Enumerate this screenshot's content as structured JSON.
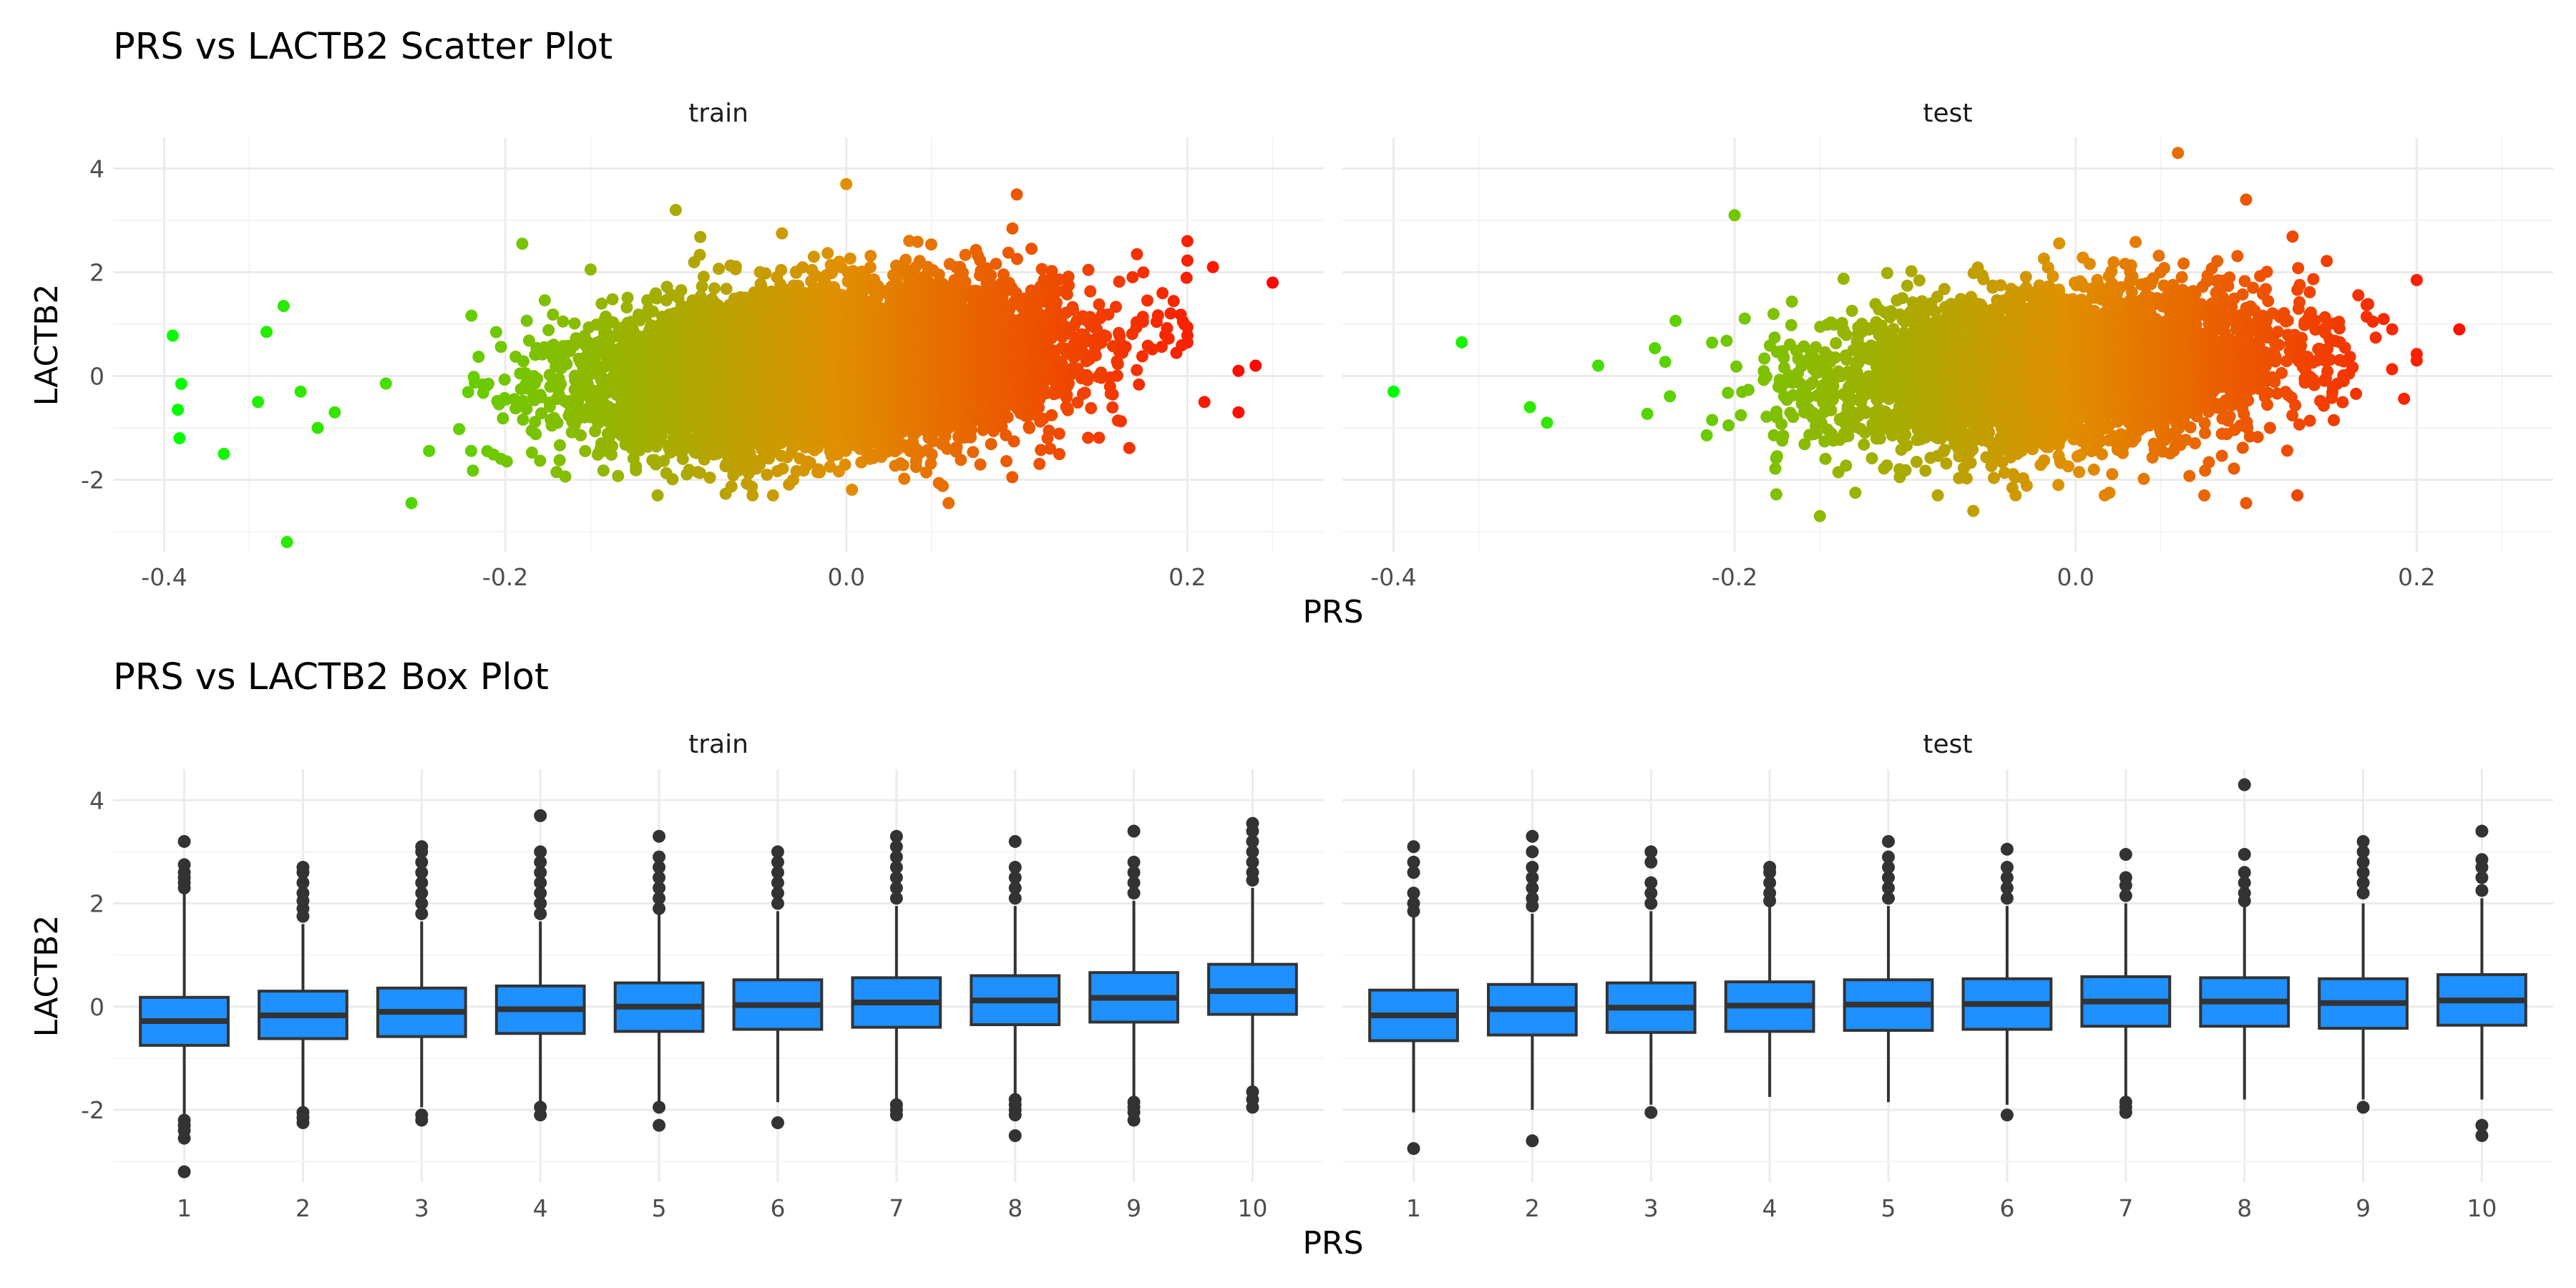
{
  "figure": {
    "scatter_title": "PRS vs LACTB2 Scatter Plot",
    "box_title": "PRS vs LACTB2 Box Plot",
    "scatter_xlabel": "PRS",
    "scatter_ylabel": "LACTB2",
    "box_xlabel": "PRS",
    "box_ylabel": "LACTB2",
    "facets": [
      "train",
      "test"
    ]
  },
  "colors": {
    "gradient_low": "#00ff00",
    "gradient_mid": "#e09000",
    "gradient_high": "#ff0000",
    "box_fill": "#1e90ff",
    "box_stroke": "#333333",
    "grid_major": "#ebebeb",
    "grid_minor": "#f4f4f4",
    "text": "#4d4d4d"
  },
  "chart_data": [
    {
      "type": "scatter",
      "title": "PRS vs LACTB2 Scatter Plot",
      "xlabel": "PRS",
      "ylabel": "LACTB2",
      "xlim": [
        -0.43,
        0.28
      ],
      "ylim": [
        -3.4,
        4.6
      ],
      "xticks": [
        -0.4,
        -0.2,
        0.0,
        0.2
      ],
      "xtick_labels": [
        "-0.4",
        "-0.2",
        "0.0",
        "0.2"
      ],
      "yticks": [
        -2,
        0,
        2,
        4
      ],
      "ytick_labels": [
        "-2",
        "0",
        "2",
        "4"
      ],
      "color_scale": "PRS (green low → red high)",
      "grid": true,
      "panels": [
        {
          "facet": "train",
          "bulk": {
            "prs_mean": -0.01,
            "prs_sd": 0.065,
            "lactb2_mean_at_prs0": 0.2,
            "lactb2_slope": 2.5,
            "lactb2_sd": 0.7,
            "n_drawn": 9000
          },
          "outliers": [
            [
              -0.395,
              0.78
            ],
            [
              -0.39,
              -0.15
            ],
            [
              -0.392,
              -0.65
            ],
            [
              -0.391,
              -1.2
            ],
            [
              -0.365,
              -1.5
            ],
            [
              -0.345,
              -0.5
            ],
            [
              -0.34,
              0.85
            ],
            [
              -0.33,
              1.35
            ],
            [
              -0.328,
              -3.2
            ],
            [
              -0.32,
              -0.3
            ],
            [
              -0.31,
              -1.0
            ],
            [
              -0.3,
              -0.7
            ],
            [
              -0.19,
              2.55
            ],
            [
              -0.255,
              -2.45
            ],
            [
              -0.1,
              3.2
            ],
            [
              0.0,
              3.7
            ],
            [
              0.1,
              3.5
            ],
            [
              0.2,
              2.6
            ],
            [
              0.215,
              2.1
            ],
            [
              0.25,
              1.8
            ],
            [
              0.23,
              0.1
            ],
            [
              0.23,
              -0.7
            ],
            [
              0.24,
              0.2
            ],
            [
              0.21,
              -0.5
            ],
            [
              0.06,
              -2.45
            ]
          ]
        },
        {
          "facet": "test",
          "bulk": {
            "prs_mean": -0.01,
            "prs_sd": 0.065,
            "lactb2_mean_at_prs0": 0.15,
            "lactb2_slope": 2.5,
            "lactb2_sd": 0.72,
            "n_drawn": 4500
          },
          "outliers": [
            [
              -0.4,
              -0.3
            ],
            [
              -0.36,
              0.65
            ],
            [
              -0.32,
              -0.6
            ],
            [
              -0.31,
              -0.9
            ],
            [
              -0.28,
              0.2
            ],
            [
              -0.2,
              3.1
            ],
            [
              -0.15,
              -2.7
            ],
            [
              -0.06,
              -2.6
            ],
            [
              0.06,
              4.3
            ],
            [
              0.1,
              3.4
            ],
            [
              0.2,
              1.85
            ],
            [
              0.225,
              0.9
            ],
            [
              0.2,
              0.3
            ],
            [
              0.13,
              -2.3
            ],
            [
              0.1,
              -2.45
            ]
          ]
        }
      ]
    },
    {
      "type": "box",
      "title": "PRS vs LACTB2 Box Plot",
      "xlabel": "PRS",
      "ylabel": "LACTB2",
      "categories": [
        "1",
        "2",
        "3",
        "4",
        "5",
        "6",
        "7",
        "8",
        "9",
        "10"
      ],
      "ylim": [
        -3.4,
        4.6
      ],
      "yticks": [
        -2,
        0,
        2,
        4
      ],
      "ytick_labels": [
        "-2",
        "0",
        "2",
        "4"
      ],
      "grid": true,
      "panels": [
        {
          "facet": "train",
          "boxes": [
            {
              "q1": -0.75,
              "median": -0.28,
              "q3": 0.18,
              "lo": -2.1,
              "hi": 2.2,
              "outliers_low": [
                -2.2,
                -2.3,
                -2.4,
                -2.55,
                -3.2
              ],
              "outliers_high": [
                2.3,
                2.4,
                2.5,
                2.6,
                2.75,
                3.2
              ]
            },
            {
              "q1": -0.62,
              "median": -0.17,
              "q3": 0.3,
              "lo": -1.95,
              "hi": 1.6,
              "outliers_low": [
                -2.05,
                -2.15,
                -2.25
              ],
              "outliers_high": [
                1.75,
                1.9,
                2.05,
                2.2,
                2.4,
                2.6,
                2.7
              ]
            },
            {
              "q1": -0.58,
              "median": -0.1,
              "q3": 0.36,
              "lo": -1.95,
              "hi": 1.65,
              "outliers_low": [
                -2.1,
                -2.2
              ],
              "outliers_high": [
                1.8,
                2.0,
                2.2,
                2.4,
                2.6,
                2.8,
                3.0,
                3.1
              ]
            },
            {
              "q1": -0.52,
              "median": -0.05,
              "q3": 0.4,
              "lo": -1.85,
              "hi": 1.65,
              "outliers_low": [
                -1.95,
                -2.1
              ],
              "outliers_high": [
                1.8,
                2.0,
                2.2,
                2.4,
                2.6,
                2.8,
                3.0,
                3.7
              ]
            },
            {
              "q1": -0.48,
              "median": 0.0,
              "q3": 0.46,
              "lo": -1.9,
              "hi": 1.8,
              "outliers_low": [
                -1.95,
                -2.3
              ],
              "outliers_high": [
                1.9,
                2.1,
                2.3,
                2.5,
                2.7,
                2.9,
                3.3
              ]
            },
            {
              "q1": -0.44,
              "median": 0.03,
              "q3": 0.52,
              "lo": -1.85,
              "hi": 1.85,
              "outliers_low": [
                -2.25
              ],
              "outliers_high": [
                2.0,
                2.2,
                2.4,
                2.6,
                2.8,
                3.0
              ]
            },
            {
              "q1": -0.4,
              "median": 0.08,
              "q3": 0.56,
              "lo": -1.8,
              "hi": 1.95,
              "outliers_low": [
                -1.9,
                -2.0,
                -2.1
              ],
              "outliers_high": [
                2.1,
                2.3,
                2.5,
                2.7,
                2.9,
                3.1,
                3.3
              ]
            },
            {
              "q1": -0.35,
              "median": 0.12,
              "q3": 0.6,
              "lo": -1.7,
              "hi": 1.95,
              "outliers_low": [
                -1.8,
                -1.9,
                -2.0,
                -2.1,
                -2.5
              ],
              "outliers_high": [
                2.1,
                2.3,
                2.5,
                2.7,
                3.2
              ]
            },
            {
              "q1": -0.3,
              "median": 0.17,
              "q3": 0.66,
              "lo": -1.75,
              "hi": 2.05,
              "outliers_low": [
                -1.85,
                -1.95,
                -2.05,
                -2.2
              ],
              "outliers_high": [
                2.2,
                2.4,
                2.6,
                2.8,
                3.4
              ]
            },
            {
              "q1": -0.15,
              "median": 0.3,
              "q3": 0.82,
              "lo": -1.55,
              "hi": 2.3,
              "outliers_low": [
                -1.65,
                -1.8,
                -1.95
              ],
              "outliers_high": [
                2.45,
                2.6,
                2.8,
                3.0,
                3.2,
                3.4,
                3.55
              ]
            }
          ]
        },
        {
          "facet": "test",
          "boxes": [
            {
              "q1": -0.66,
              "median": -0.17,
              "q3": 0.32,
              "lo": -2.05,
              "hi": 1.75,
              "outliers_low": [
                -2.75
              ],
              "outliers_high": [
                1.85,
                2.0,
                2.2,
                2.6,
                2.8,
                3.1
              ]
            },
            {
              "q1": -0.55,
              "median": -0.05,
              "q3": 0.43,
              "lo": -2.0,
              "hi": 1.8,
              "outliers_low": [
                -2.6
              ],
              "outliers_high": [
                1.95,
                2.1,
                2.3,
                2.5,
                2.7,
                3.0,
                3.3
              ]
            },
            {
              "q1": -0.5,
              "median": -0.02,
              "q3": 0.46,
              "lo": -1.9,
              "hi": 1.85,
              "outliers_low": [
                -2.05
              ],
              "outliers_high": [
                2.0,
                2.2,
                2.4,
                2.8,
                3.0
              ]
            },
            {
              "q1": -0.48,
              "median": 0.02,
              "q3": 0.48,
              "lo": -1.75,
              "hi": 1.95,
              "outliers_low": [],
              "outliers_high": [
                2.05,
                2.2,
                2.4,
                2.6,
                2.7
              ]
            },
            {
              "q1": -0.46,
              "median": 0.04,
              "q3": 0.52,
              "lo": -1.85,
              "hi": 1.95,
              "outliers_low": [],
              "outliers_high": [
                2.1,
                2.3,
                2.5,
                2.7,
                2.9,
                3.2
              ]
            },
            {
              "q1": -0.44,
              "median": 0.05,
              "q3": 0.54,
              "lo": -1.9,
              "hi": 1.95,
              "outliers_low": [
                -2.1
              ],
              "outliers_high": [
                2.1,
                2.3,
                2.5,
                2.7,
                3.05
              ]
            },
            {
              "q1": -0.38,
              "median": 0.1,
              "q3": 0.58,
              "lo": -1.75,
              "hi": 2.0,
              "outliers_low": [
                -1.85,
                -1.95,
                -2.05
              ],
              "outliers_high": [
                2.15,
                2.35,
                2.5,
                2.95
              ]
            },
            {
              "q1": -0.38,
              "median": 0.1,
              "q3": 0.56,
              "lo": -1.8,
              "hi": 1.95,
              "outliers_low": [],
              "outliers_high": [
                2.05,
                2.2,
                2.4,
                2.6,
                2.95,
                4.3
              ]
            },
            {
              "q1": -0.42,
              "median": 0.07,
              "q3": 0.54,
              "lo": -1.8,
              "hi": 2.0,
              "outliers_low": [
                -1.95
              ],
              "outliers_high": [
                2.2,
                2.4,
                2.6,
                2.8,
                3.0,
                3.2
              ]
            },
            {
              "q1": -0.36,
              "median": 0.12,
              "q3": 0.62,
              "lo": -1.8,
              "hi": 2.1,
              "outliers_low": [
                -2.3,
                -2.5
              ],
              "outliers_high": [
                2.25,
                2.5,
                2.7,
                2.85,
                3.4
              ]
            }
          ]
        }
      ]
    }
  ]
}
